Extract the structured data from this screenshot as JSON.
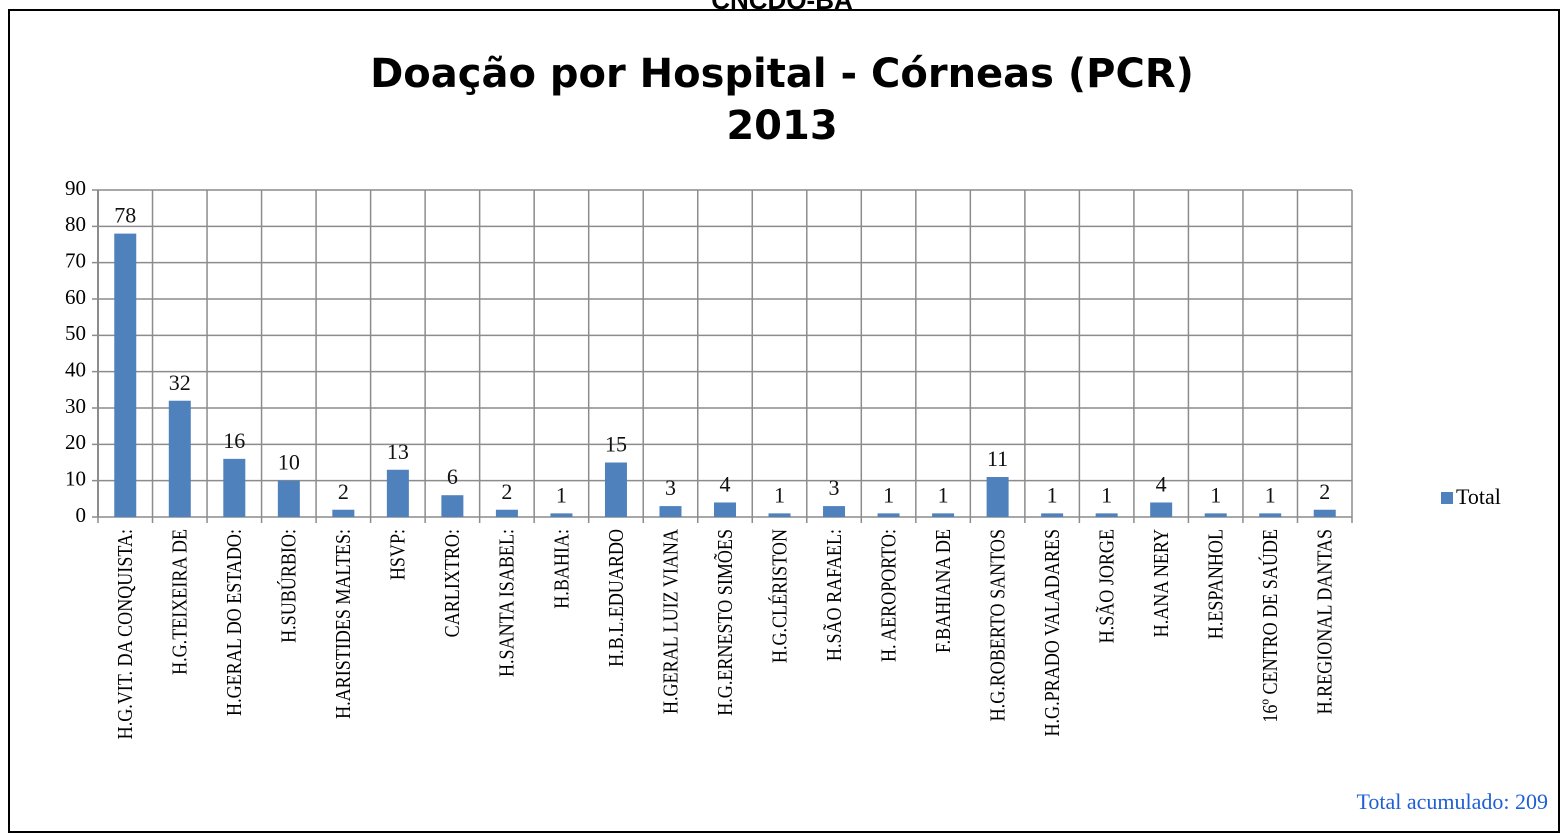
{
  "header": "CNCDO-BA",
  "chart_data": {
    "type": "bar",
    "title": [
      "Doação por Hospital - Córneas (PCR)",
      "2013"
    ],
    "categories": [
      "H.G.VIT. DA CONQUISTA:",
      "H.G.TEIXEIRA DE",
      "H.GERAL DO ESTADO:",
      "H.SUBÚRBIO:",
      "H.ARISTIDES MALTES:",
      "HSVP:",
      "CARLIXTRO:",
      "H.SANTA ISABEL:",
      "H.BAHIA:",
      "H.B.L.EDUARDO",
      "H.GERAL LUIZ VIANA",
      "H.G.ERNESTO SIMÕES",
      "H.G.CLÉRISTON",
      "H.SÃO RAFAEL:",
      "H. AEROPORTO:",
      "F.BAHIANA DE",
      "H.G.ROBERTO SANTOS",
      "H.G.PRADO VALADARES",
      "H.SÃO JORGE",
      "H.ANA NERY",
      "H.ESPANHOL",
      "16º CENTRO DE SAÚDE",
      "H.REGIONAL DANTAS"
    ],
    "series": [
      {
        "name": "Total",
        "color": "#4f81bd",
        "values": [
          78,
          32,
          16,
          10,
          2,
          13,
          6,
          2,
          1,
          15,
          3,
          4,
          1,
          3,
          1,
          1,
          11,
          1,
          1,
          4,
          1,
          1,
          2
        ]
      }
    ],
    "ylim": [
      0,
      90
    ],
    "yticks": [
      0,
      10,
      20,
      30,
      40,
      50,
      60,
      70,
      80,
      90
    ],
    "grid": true,
    "legend": "right",
    "annotation": "Total acumulado: 209"
  }
}
